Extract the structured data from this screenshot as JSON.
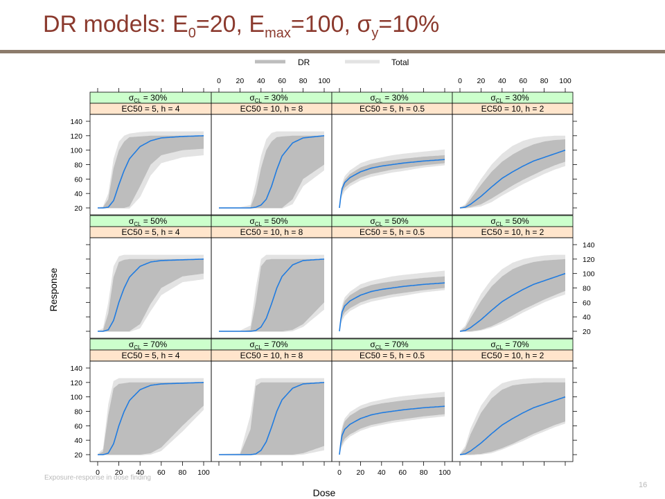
{
  "slide": {
    "title": {
      "pre": "DR models: E",
      "sub1": "0",
      "mid1": "=20, E",
      "sub2": "max",
      "mid2": "=100, σ",
      "sub3": "y",
      "post": "=10%"
    },
    "footer": "Exposure-response in dose finding",
    "page_number": "16"
  },
  "colors": {
    "line": "#1f7be0",
    "dr_band": "#bdbdbd",
    "total_band": "#e3e3e3",
    "strip_cl": "#ccffcc",
    "strip_ec": "#ffe5cc",
    "title": "#8b3a2e",
    "rule": "#8c7b6b"
  },
  "chart_data": {
    "type": "area",
    "xlabel": "Dose",
    "ylabel": "Response",
    "xlim": [
      0,
      100
    ],
    "ylim": [
      20,
      140
    ],
    "x_ticks": [
      0,
      20,
      40,
      60,
      80,
      100
    ],
    "y_ticks": [
      20,
      40,
      60,
      80,
      100,
      120,
      140
    ],
    "legend": {
      "position": "top",
      "entries": [
        "DR",
        "Total"
      ]
    },
    "strip_prefix": "σ",
    "strip_sub": "CL",
    "rows": [
      {
        "cl_label": "= 30%"
      },
      {
        "cl_label": "= 50%"
      },
      {
        "cl_label": "= 70%"
      }
    ],
    "columns": [
      {
        "label": "EC50 = 5, h = 4",
        "ec50": 5,
        "h": 4
      },
      {
        "label": "EC50 = 10, h = 8",
        "ec50": 10,
        "h": 8
      },
      {
        "label": "EC50 = 5, h = 0.5",
        "ec50": 5,
        "h": 0.5
      },
      {
        "label": "EC50 = 10, h = 2",
        "ec50": 10,
        "h": 2
      }
    ],
    "panels": [
      {
        "row": 0,
        "col": 0,
        "x": [
          0,
          5,
          10,
          15,
          20,
          25,
          30,
          40,
          50,
          60,
          80,
          100
        ],
        "y": [
          20,
          20,
          21,
          30,
          52,
          72,
          88,
          105,
          113,
          117,
          119,
          120
        ],
        "dr_low": [
          20,
          20,
          20,
          20,
          20,
          20,
          22,
          50,
          80,
          93,
          100,
          102
        ],
        "dr_high": [
          20,
          21,
          32,
          75,
          100,
          112,
          118,
          119,
          120,
          120,
          120,
          120
        ],
        "total_low": [
          19,
          19,
          19,
          19,
          19,
          19,
          19,
          35,
          65,
          82,
          90,
          93
        ],
        "total_high": [
          21,
          22,
          40,
          88,
          112,
          120,
          123,
          125,
          126,
          126,
          126,
          126
        ]
      },
      {
        "row": 0,
        "col": 1,
        "x": [
          0,
          20,
          30,
          35,
          40,
          45,
          50,
          55,
          60,
          70,
          80,
          100
        ],
        "y": [
          20,
          20,
          20,
          21,
          24,
          32,
          50,
          73,
          92,
          110,
          117,
          120
        ],
        "dr_low": [
          20,
          20,
          20,
          20,
          20,
          20,
          20,
          20,
          20,
          32,
          60,
          80
        ],
        "dr_high": [
          20,
          20,
          21,
          40,
          75,
          100,
          112,
          118,
          119,
          120,
          120,
          120
        ],
        "total_low": [
          19,
          19,
          19,
          19,
          19,
          19,
          19,
          19,
          19,
          25,
          50,
          72
        ],
        "total_high": [
          21,
          21,
          24,
          55,
          92,
          115,
          124,
          126,
          126,
          126,
          126,
          126
        ]
      },
      {
        "row": 0,
        "col": 2,
        "x": [
          0,
          2,
          5,
          10,
          20,
          30,
          40,
          50,
          60,
          80,
          100
        ],
        "y": [
          20,
          45,
          55,
          62,
          70,
          75,
          78,
          80,
          82,
          85,
          87
        ],
        "dr_low": [
          20,
          40,
          48,
          54,
          62,
          67,
          70,
          73,
          75,
          79,
          82
        ],
        "dr_high": [
          20,
          48,
          59,
          67,
          76,
          81,
          84,
          86,
          88,
          91,
          93
        ],
        "total_low": [
          20,
          35,
          43,
          50,
          58,
          63,
          66,
          69,
          71,
          76,
          79
        ],
        "total_high": [
          20,
          52,
          64,
          72,
          82,
          87,
          90,
          93,
          95,
          98,
          101
        ]
      },
      {
        "row": 0,
        "col": 3,
        "x": [
          0,
          5,
          10,
          20,
          30,
          40,
          50,
          60,
          70,
          80,
          90,
          100
        ],
        "y": [
          20,
          21,
          25,
          36,
          49,
          61,
          70,
          78,
          85,
          90,
          95,
          100
        ],
        "dr_low": [
          20,
          20,
          21,
          25,
          33,
          42,
          51,
          59,
          66,
          73,
          79,
          84
        ],
        "dr_high": [
          20,
          23,
          32,
          52,
          70,
          84,
          94,
          102,
          108,
          112,
          114,
          115
        ],
        "total_low": [
          19,
          19,
          20,
          22,
          28,
          37,
          45,
          53,
          60,
          67,
          73,
          78
        ],
        "total_high": [
          21,
          25,
          37,
          60,
          80,
          95,
          106,
          113,
          117,
          119,
          120,
          120
        ]
      },
      {
        "row": 1,
        "col": 0,
        "x": [
          0,
          5,
          10,
          15,
          20,
          25,
          30,
          40,
          50,
          60,
          80,
          100
        ],
        "y": [
          20,
          20,
          22,
          35,
          60,
          80,
          95,
          110,
          116,
          118,
          119,
          120
        ],
        "dr_low": [
          20,
          20,
          20,
          20,
          20,
          20,
          20,
          30,
          58,
          80,
          96,
          100
        ],
        "dr_high": [
          20,
          21,
          45,
          95,
          116,
          119,
          120,
          120,
          120,
          120,
          120,
          120
        ],
        "total_low": [
          19,
          19,
          19,
          19,
          19,
          19,
          19,
          24,
          48,
          70,
          88,
          92
        ],
        "total_high": [
          21,
          24,
          60,
          110,
          124,
          126,
          126,
          126,
          126,
          126,
          126,
          126
        ]
      },
      {
        "row": 1,
        "col": 1,
        "x": [
          0,
          20,
          30,
          35,
          40,
          45,
          50,
          55,
          60,
          70,
          80,
          100
        ],
        "y": [
          20,
          20,
          20,
          21,
          26,
          38,
          58,
          80,
          96,
          112,
          118,
          120
        ],
        "dr_low": [
          20,
          20,
          20,
          20,
          20,
          20,
          20,
          20,
          20,
          22,
          30,
          60
        ],
        "dr_high": [
          20,
          20,
          22,
          60,
          110,
          119,
          120,
          120,
          120,
          120,
          120,
          120
        ],
        "total_low": [
          19,
          19,
          19,
          19,
          19,
          19,
          19,
          19,
          19,
          20,
          26,
          50
        ],
        "total_high": [
          21,
          21,
          28,
          80,
          120,
          126,
          126,
          126,
          126,
          126,
          126,
          126
        ]
      },
      {
        "row": 1,
        "col": 2,
        "x": [
          0,
          2,
          5,
          10,
          20,
          30,
          40,
          50,
          60,
          80,
          100
        ],
        "y": [
          20,
          45,
          55,
          62,
          70,
          75,
          78,
          80,
          82,
          85,
          87
        ],
        "dr_low": [
          20,
          38,
          46,
          52,
          60,
          65,
          68,
          71,
          73,
          77,
          80
        ],
        "dr_high": [
          20,
          50,
          62,
          70,
          79,
          84,
          87,
          89,
          91,
          94,
          96
        ],
        "total_low": [
          20,
          33,
          41,
          48,
          56,
          61,
          64,
          67,
          69,
          74,
          77
        ],
        "total_high": [
          20,
          55,
          67,
          75,
          85,
          90,
          93,
          96,
          98,
          101,
          104
        ]
      },
      {
        "row": 1,
        "col": 3,
        "x": [
          0,
          5,
          10,
          20,
          30,
          40,
          50,
          60,
          70,
          80,
          90,
          100
        ],
        "y": [
          20,
          21,
          25,
          36,
          49,
          61,
          70,
          78,
          85,
          90,
          95,
          100
        ],
        "dr_low": [
          20,
          20,
          20,
          22,
          27,
          34,
          42,
          50,
          57,
          64,
          70,
          76
        ],
        "dr_high": [
          20,
          25,
          38,
          62,
          82,
          96,
          106,
          112,
          116,
          118,
          119,
          120
        ],
        "total_low": [
          19,
          19,
          19,
          21,
          25,
          31,
          38,
          46,
          53,
          60,
          66,
          71
        ],
        "total_high": [
          21,
          28,
          44,
          72,
          92,
          106,
          115,
          120,
          123,
          125,
          126,
          126
        ]
      },
      {
        "row": 2,
        "col": 0,
        "x": [
          0,
          5,
          10,
          15,
          20,
          25,
          30,
          40,
          50,
          60,
          80,
          100
        ],
        "y": [
          20,
          20,
          22,
          35,
          60,
          80,
          95,
          110,
          116,
          118,
          119,
          120
        ],
        "dr_low": [
          20,
          20,
          20,
          20,
          20,
          20,
          20,
          20,
          22,
          30,
          60,
          88
        ],
        "dr_high": [
          20,
          24,
          75,
          112,
          118,
          119,
          120,
          120,
          120,
          120,
          120,
          120
        ],
        "total_low": [
          19,
          19,
          19,
          19,
          19,
          19,
          19,
          19,
          20,
          25,
          52,
          82
        ],
        "total_high": [
          21,
          28,
          90,
          122,
          126,
          126,
          126,
          126,
          126,
          126,
          126,
          126
        ]
      },
      {
        "row": 2,
        "col": 1,
        "x": [
          0,
          20,
          30,
          35,
          40,
          45,
          50,
          55,
          60,
          70,
          80,
          100
        ],
        "y": [
          20,
          20,
          20,
          21,
          26,
          38,
          58,
          80,
          96,
          112,
          118,
          120
        ],
        "dr_low": [
          20,
          20,
          20,
          20,
          20,
          20,
          20,
          20,
          20,
          20,
          22,
          32
        ],
        "dr_high": [
          20,
          20,
          55,
          115,
          120,
          120,
          120,
          120,
          120,
          120,
          120,
          120
        ],
        "total_low": [
          19,
          19,
          19,
          19,
          19,
          19,
          19,
          19,
          19,
          19,
          20,
          26
        ],
        "total_high": [
          21,
          22,
          75,
          124,
          126,
          126,
          126,
          126,
          126,
          126,
          126,
          126
        ]
      },
      {
        "row": 2,
        "col": 2,
        "x": [
          0,
          2,
          5,
          10,
          20,
          30,
          40,
          50,
          60,
          80,
          100
        ],
        "y": [
          20,
          45,
          55,
          62,
          70,
          75,
          78,
          80,
          82,
          85,
          87
        ],
        "dr_low": [
          20,
          34,
          42,
          48,
          56,
          61,
          64,
          67,
          69,
          73,
          76
        ],
        "dr_high": [
          20,
          54,
          66,
          74,
          83,
          88,
          91,
          93,
          95,
          98,
          100
        ],
        "total_low": [
          20,
          30,
          38,
          45,
          53,
          58,
          61,
          64,
          66,
          70,
          73
        ],
        "total_high": [
          20,
          58,
          70,
          79,
          88,
          93,
          96,
          99,
          101,
          104,
          107
        ]
      },
      {
        "row": 2,
        "col": 3,
        "x": [
          0,
          5,
          10,
          20,
          30,
          40,
          50,
          60,
          70,
          80,
          90,
          100
        ],
        "y": [
          20,
          21,
          25,
          36,
          49,
          61,
          70,
          78,
          85,
          90,
          95,
          100
        ],
        "dr_low": [
          20,
          20,
          20,
          21,
          24,
          29,
          35,
          42,
          49,
          55,
          61,
          66
        ],
        "dr_high": [
          20,
          28,
          48,
          78,
          98,
          110,
          116,
          118,
          119,
          120,
          120,
          120
        ],
        "total_low": [
          19,
          19,
          19,
          20,
          22,
          27,
          33,
          39,
          46,
          52,
          58,
          63
        ],
        "total_high": [
          21,
          32,
          56,
          88,
          108,
          119,
          123,
          125,
          126,
          126,
          126,
          126
        ]
      }
    ]
  }
}
